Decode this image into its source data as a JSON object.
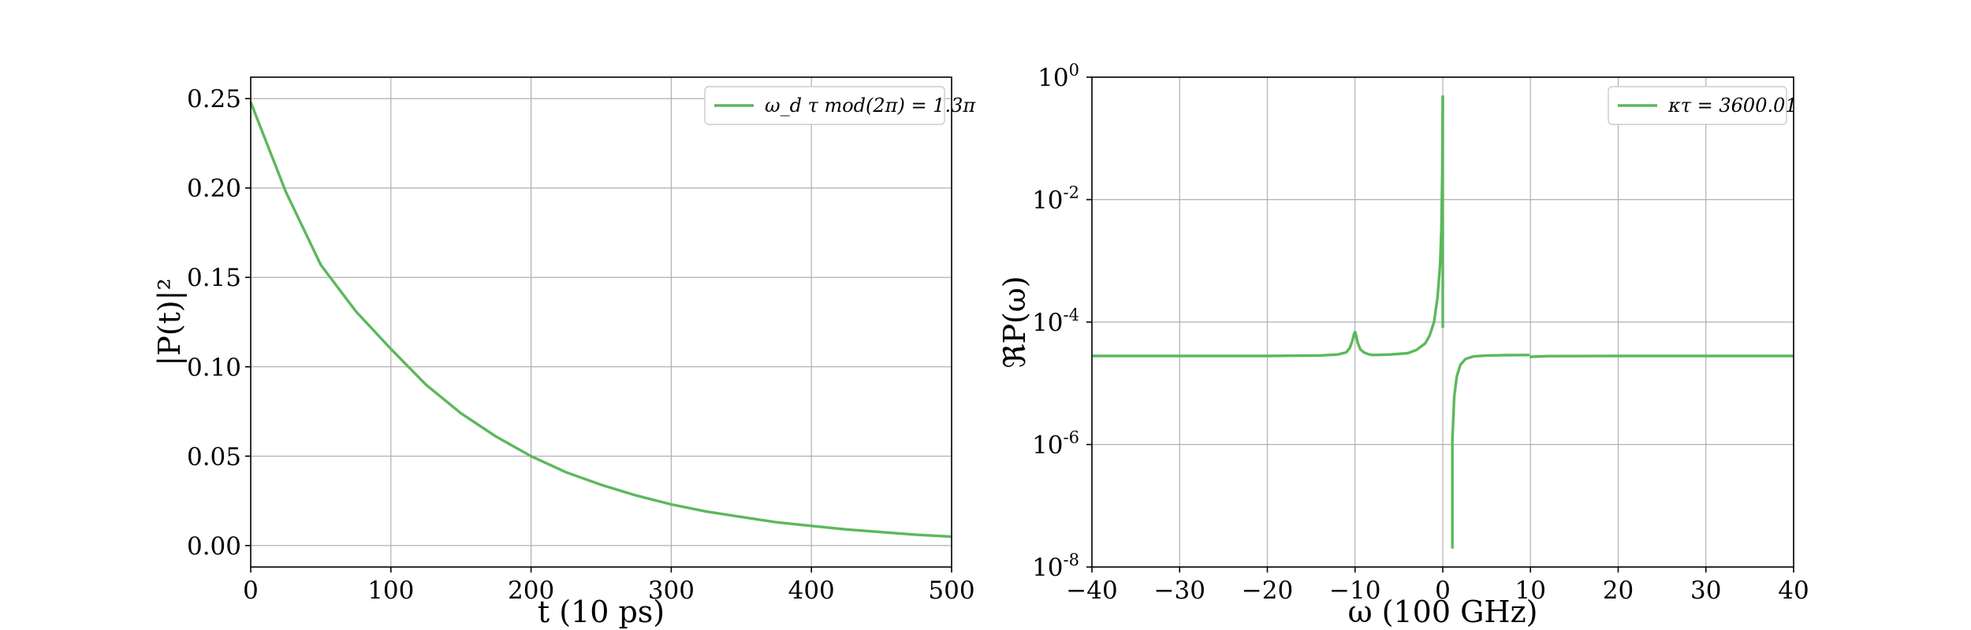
{
  "colors": {
    "series": "#5cb85c"
  },
  "chart_data": [
    {
      "type": "line",
      "xlabel": "t (10 ps)",
      "ylabel": "|P(t)|²",
      "xlim": [
        0,
        500
      ],
      "ylim": [
        -0.012,
        0.262
      ],
      "xticks": [
        0,
        100,
        200,
        300,
        400,
        500
      ],
      "xtick_labels": [
        "0",
        "100",
        "200",
        "300",
        "400",
        "500"
      ],
      "yticks": [
        0.0,
        0.05,
        0.1,
        0.15,
        0.2,
        0.25
      ],
      "ytick_labels": [
        "0.00",
        "0.05",
        "0.10",
        "0.15",
        "0.20",
        "0.25"
      ],
      "grid": true,
      "legend_position": "top-right",
      "series": [
        {
          "name": "ω_d τ mod(2π) = 1.3π",
          "x": [
            0,
            25,
            50,
            75,
            100,
            125,
            150,
            175,
            200,
            225,
            250,
            275,
            300,
            325,
            350,
            375,
            400,
            425,
            450,
            475,
            500
          ],
          "y": [
            0.248,
            0.198,
            0.157,
            0.131,
            0.11,
            0.09,
            0.074,
            0.061,
            0.05,
            0.041,
            0.034,
            0.028,
            0.023,
            0.019,
            0.016,
            0.013,
            0.011,
            0.009,
            0.0075,
            0.006,
            0.005
          ]
        }
      ]
    },
    {
      "type": "line",
      "xlabel": "ω (100 GHz)",
      "ylabel": "ℜP(ω)",
      "xlim": [
        -40,
        40
      ],
      "ylim": [
        1e-08,
        1
      ],
      "yscale": "log",
      "xticks": [
        -40,
        -30,
        -20,
        -10,
        0,
        10,
        20,
        30,
        40
      ],
      "xtick_labels": [
        "−40",
        "−30",
        "−20",
        "−10",
        "0",
        "10",
        "20",
        "30",
        "40"
      ],
      "yticks": [
        1e-08,
        1e-06,
        0.0001,
        0.01,
        1
      ],
      "ytick_labels": [
        {
          "base": "10",
          "exp": "-8"
        },
        {
          "base": "10",
          "exp": "-6"
        },
        {
          "base": "10",
          "exp": "-4"
        },
        {
          "base": "10",
          "exp": "-2"
        },
        {
          "base": "10",
          "exp": "0"
        }
      ],
      "grid": true,
      "legend_position": "top-right",
      "series": [
        {
          "name": "κτ = 3600.01",
          "segments": [
            {
              "x": [
                -40,
                -30,
                -20,
                -14,
                -12,
                -11,
                -10.6,
                -10.3,
                -10.1,
                -10.0,
                -9.9,
                -9.7,
                -9.4,
                -9.0,
                -8.5,
                -8,
                -6,
                -4,
                -3,
                -2,
                -1.5,
                -1.0,
                -0.6,
                -0.3,
                -0.15,
                -0.05,
                0.0
              ],
              "y": [
                2.8e-05,
                2.8e-05,
                2.8e-05,
                2.85e-05,
                2.95e-05,
                3.2e-05,
                3.8e-05,
                5e-05,
                6.5e-05,
                6.9e-05,
                6.2e-05,
                4.6e-05,
                3.6e-05,
                3.2e-05,
                3e-05,
                2.9e-05,
                2.95e-05,
                3.1e-05,
                3.5e-05,
                4.5e-05,
                6e-05,
                0.0001,
                0.00025,
                0.0009,
                0.0035,
                0.03,
                0.5
              ]
            },
            {
              "x": [
                0.0,
                0.0
              ],
              "y": [
                0.5,
                8e-05
              ]
            },
            {
              "x": [
                1.1,
                1.1,
                1.3,
                1.6,
                2.0,
                2.6,
                3.5,
                5,
                7,
                9.9
              ],
              "y": [
                2e-08,
                1.2e-06,
                6e-06,
                1.3e-05,
                2e-05,
                2.5e-05,
                2.75e-05,
                2.85e-05,
                2.88e-05,
                2.9e-05
              ]
            },
            {
              "x": [
                9.9,
                10.1,
                12,
                20,
                30,
                40
              ],
              "y": [
                2.72e-05,
                2.72e-05,
                2.78e-05,
                2.8e-05,
                2.8e-05,
                2.8e-05
              ]
            }
          ]
        }
      ]
    }
  ]
}
